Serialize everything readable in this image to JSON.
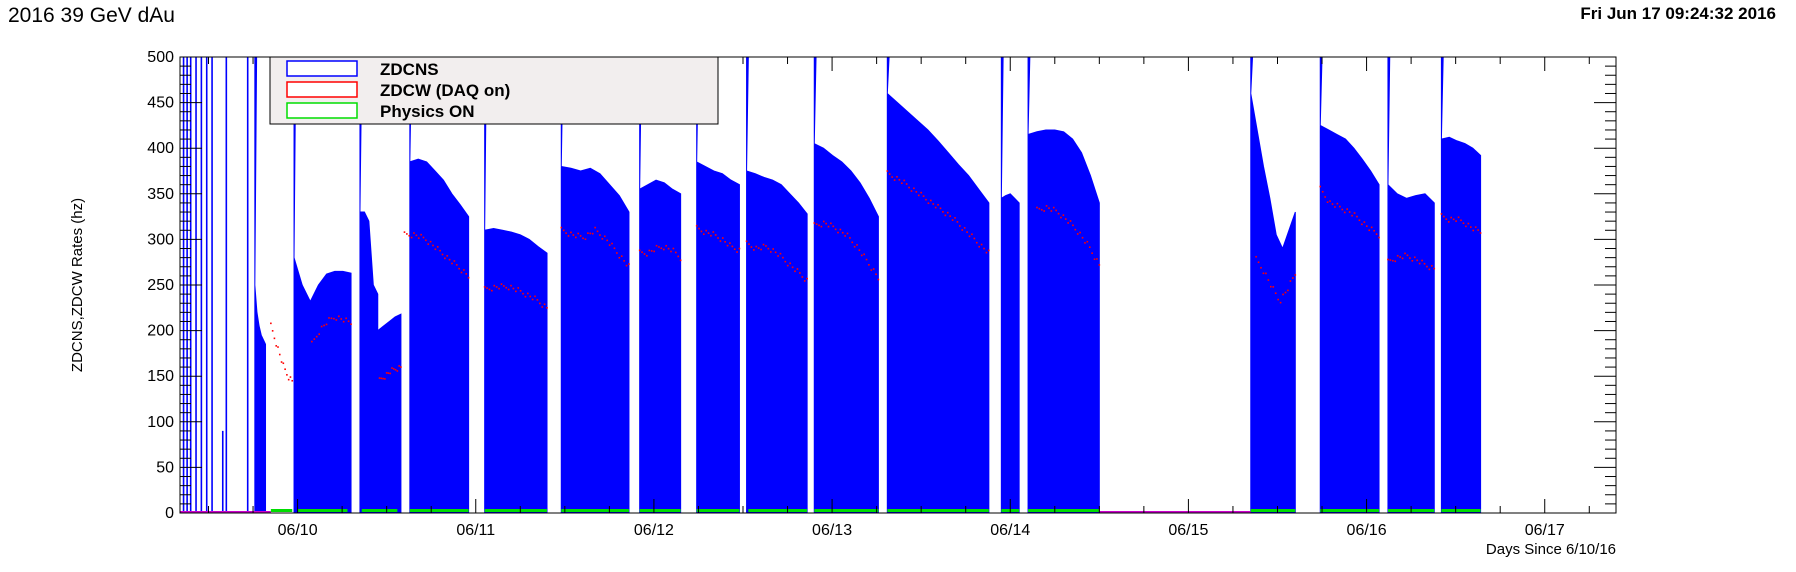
{
  "page": {
    "title": "2016 39 GeV dAu",
    "timestamp": "Fri Jun 17 09:24:32 2016"
  },
  "colors": {
    "zdcns": "#0000ff",
    "zdcw": "#ff0000",
    "physics": "#00dd00",
    "legend_bg": "#f2eeee"
  },
  "chart_data": {
    "type": "area",
    "title": "2016 39 GeV dAu",
    "xlabel": "Days Since 6/10/16",
    "ylabel": "ZDCNS,ZDCW Rates (hz)",
    "xlim": [
      -0.66,
      7.4
    ],
    "ylim": [
      0,
      500
    ],
    "y_ticks": [
      0,
      50,
      100,
      150,
      200,
      250,
      300,
      350,
      400,
      450,
      500
    ],
    "x_ticks": [
      {
        "x": 0,
        "label": "06/10"
      },
      {
        "x": 1,
        "label": "06/11"
      },
      {
        "x": 2,
        "label": "06/12"
      },
      {
        "x": 3,
        "label": "06/13"
      },
      {
        "x": 4,
        "label": "06/14"
      },
      {
        "x": 5,
        "label": "06/15"
      },
      {
        "x": 6,
        "label": "06/16"
      },
      {
        "x": 7,
        "label": "06/17"
      }
    ],
    "legend": {
      "position": "top-left",
      "entries": [
        {
          "name": "ZDCNS",
          "color": "#0000ff"
        },
        {
          "name": "ZDCW (DAQ on)",
          "color": "#ff0000"
        },
        {
          "name": "Physics ON",
          "color": "#00dd00"
        }
      ]
    },
    "spikes": [
      {
        "x": -0.64,
        "y": 500
      },
      {
        "x": -0.62,
        "y": 500
      },
      {
        "x": -0.6,
        "y": 500
      },
      {
        "x": -0.57,
        "y": 500
      },
      {
        "x": -0.54,
        "y": 500
      },
      {
        "x": -0.51,
        "y": 500
      },
      {
        "x": -0.48,
        "y": 500
      },
      {
        "x": -0.42,
        "y": 90
      },
      {
        "x": -0.4,
        "y": 500
      },
      {
        "x": -0.28,
        "y": 500
      }
    ],
    "series": [
      {
        "name": "ZDCNS",
        "color": "#0000ff",
        "fills": [
          {
            "x0": -0.24,
            "x1": -0.18,
            "peak": 500,
            "peak_x": -0.23,
            "values": [
              250,
              220,
              205,
              195,
              190,
              185
            ]
          },
          {
            "x0": -0.02,
            "x1": 0.3,
            "peak": 500,
            "peak_x": -0.01,
            "values": [
              280,
              250,
              232,
              250,
              262,
              265,
              265,
              263
            ]
          },
          {
            "x0": 0.35,
            "x1": 0.45,
            "peak": 490,
            "peak_x": 0.36,
            "values": [
              330,
              330,
              320,
              250,
              240
            ]
          },
          {
            "x0": 0.45,
            "x1": 0.58,
            "values": [
              200,
              205,
              210,
              215,
              218
            ]
          },
          {
            "x0": 0.63,
            "x1": 0.96,
            "peak": 500,
            "peak_x": 0.64,
            "values": [
              385,
              388,
              385,
              375,
              365,
              350,
              338,
              325
            ]
          },
          {
            "x0": 1.05,
            "x1": 1.4,
            "peak": 500,
            "peak_x": 1.06,
            "values": [
              310,
              312,
              310,
              308,
              305,
              300,
              292,
              285
            ]
          },
          {
            "x0": 1.48,
            "x1": 1.86,
            "peak": 500,
            "peak_x": 1.49,
            "values": [
              380,
              378,
              375,
              378,
              372,
              360,
              348,
              330
            ]
          },
          {
            "x0": 1.92,
            "x1": 2.15,
            "peak": 500,
            "peak_x": 1.93,
            "values": [
              355,
              360,
              365,
              362,
              355,
              350
            ]
          },
          {
            "x0": 2.24,
            "x1": 2.48,
            "peak": 500,
            "peak_x": 2.25,
            "values": [
              385,
              380,
              375,
              372,
              365,
              360
            ]
          },
          {
            "x0": 2.52,
            "x1": 2.86,
            "peak": 500,
            "peak_x": 2.53,
            "values": [
              375,
              372,
              368,
              365,
              360,
              350,
              340,
              328
            ]
          },
          {
            "x0": 2.9,
            "x1": 3.26,
            "peak": 500,
            "peak_x": 2.91,
            "values": [
              405,
              400,
              392,
              385,
              375,
              362,
              345,
              325
            ]
          },
          {
            "x0": 3.31,
            "x1": 3.88,
            "peak": 500,
            "peak_x": 3.32,
            "values": [
              460,
              450,
              440,
              430,
              420,
              408,
              395,
              382,
              370,
              355,
              340
            ]
          },
          {
            "x0": 3.95,
            "x1": 4.05,
            "peak": 500,
            "peak_x": 3.96,
            "values": [
              345,
              348,
              350,
              345,
              340
            ]
          },
          {
            "x0": 4.1,
            "x1": 4.5,
            "peak": 500,
            "peak_x": 4.11,
            "values": [
              415,
              418,
              420,
              420,
              418,
              410,
              395,
              370,
              340
            ]
          },
          {
            "x0": 5.35,
            "x1": 5.6,
            "peak": 500,
            "peak_x": 5.36,
            "values": [
              460,
              420,
              380,
              345,
              305,
              290,
              310,
              330
            ]
          },
          {
            "x0": 5.74,
            "x1": 6.07,
            "peak": 500,
            "peak_x": 5.75,
            "values": [
              425,
              420,
              415,
              410,
              400,
              388,
              375,
              360
            ]
          },
          {
            "x0": 6.12,
            "x1": 6.38,
            "peak": 500,
            "peak_x": 6.13,
            "values": [
              360,
              350,
              345,
              348,
              350,
              340
            ]
          },
          {
            "x0": 6.42,
            "x1": 6.64,
            "peak": 500,
            "peak_x": 6.43,
            "values": [
              410,
              412,
              408,
              405,
              400,
              392
            ]
          }
        ]
      },
      {
        "name": "ZDCW (DAQ on)",
        "color": "#ff0000",
        "segments": [
          {
            "x0": -0.15,
            "x1": -0.03,
            "values": [
              205,
              190,
              175,
              160,
              150,
              145
            ]
          },
          {
            "x0": 0.08,
            "x1": 0.3,
            "values": [
              185,
              200,
              210,
              215,
              212,
              208
            ]
          },
          {
            "x0": 0.46,
            "x1": 0.58,
            "values": [
              145,
              150,
              155,
              158,
              160
            ]
          },
          {
            "x0": 0.6,
            "x1": 0.96,
            "values": [
              305,
              305,
              300,
              290,
              280,
              270,
              260
            ]
          },
          {
            "x0": 1.05,
            "x1": 1.4,
            "values": [
              245,
              248,
              248,
              242,
              235,
              225
            ]
          },
          {
            "x0": 1.48,
            "x1": 1.86,
            "values": [
              310,
              305,
              302,
              310,
              300,
              285,
              270
            ]
          },
          {
            "x0": 1.92,
            "x1": 2.15,
            "values": [
              285,
              285,
              290,
              292,
              288,
              280
            ]
          },
          {
            "x0": 2.24,
            "x1": 2.48,
            "values": [
              312,
              308,
              305,
              300,
              292,
              288
            ]
          },
          {
            "x0": 2.52,
            "x1": 2.86,
            "values": [
              295,
              290,
              292,
              285,
              275,
              265,
              255
            ]
          },
          {
            "x0": 2.9,
            "x1": 3.26,
            "values": [
              315,
              318,
              312,
              305,
              292,
              275,
              258
            ]
          },
          {
            "x0": 3.31,
            "x1": 3.88,
            "values": [
              372,
              365,
              355,
              345,
              335,
              325,
              312,
              298,
              285
            ]
          },
          {
            "x0": 4.15,
            "x1": 4.5,
            "values": [
              332,
              335,
              330,
              320,
              308,
              292,
              272
            ]
          },
          {
            "x0": 5.38,
            "x1": 5.6,
            "values": [
              278,
              265,
              248,
              232,
              245,
              262
            ]
          },
          {
            "x0": 5.74,
            "x1": 6.07,
            "values": [
              355,
              340,
              335,
              330,
              322,
              312,
              305
            ]
          },
          {
            "x0": 6.12,
            "x1": 6.38,
            "values": [
              275,
              280,
              282,
              278,
              272,
              268
            ]
          },
          {
            "x0": 6.42,
            "x1": 6.64,
            "values": [
              325,
              322,
              322,
              318,
              312,
              308
            ]
          }
        ]
      },
      {
        "name": "Physics ON",
        "color": "#00dd00",
        "on_intervals": [
          [
            -0.15,
            -0.03
          ],
          [
            0.0,
            0.28
          ],
          [
            0.36,
            0.56
          ],
          [
            0.63,
            0.96
          ],
          [
            1.05,
            1.4
          ],
          [
            1.48,
            1.86
          ],
          [
            1.92,
            2.15
          ],
          [
            2.24,
            2.48
          ],
          [
            2.53,
            2.86
          ],
          [
            2.9,
            3.26
          ],
          [
            3.31,
            3.88
          ],
          [
            3.95,
            4.05
          ],
          [
            4.1,
            4.5
          ],
          [
            5.35,
            5.6
          ],
          [
            5.74,
            6.07
          ],
          [
            6.12,
            6.38
          ],
          [
            6.42,
            6.64
          ]
        ],
        "zero_level_intervals": [
          [
            -0.66,
            -0.15
          ],
          [
            4.5,
            5.35
          ]
        ]
      }
    ]
  }
}
